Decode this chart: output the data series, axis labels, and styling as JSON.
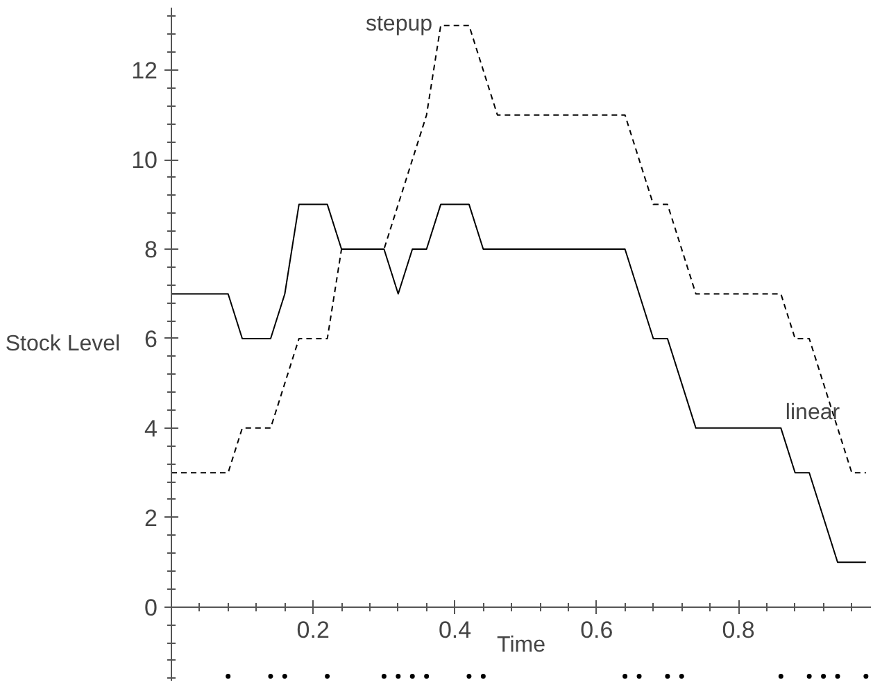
{
  "chart_data": {
    "type": "line",
    "xlabel": "Time",
    "ylabel": "Stock Level",
    "xlim": [
      0,
      0.987
    ],
    "ylim": [
      -1.65,
      13.4
    ],
    "xticks": [
      0.2,
      0.4,
      0.6,
      0.8
    ],
    "yticks": [
      0,
      2,
      4,
      6,
      8,
      10,
      12
    ],
    "grid": false,
    "series": [
      {
        "line_style": "solid",
        "color": "#000000",
        "x": [
          0,
          0.08,
          0.1,
          0.14,
          0.16,
          0.18,
          0.22,
          0.24,
          0.3,
          0.32,
          0.34,
          0.36,
          0.38,
          0.42,
          0.44,
          0.64,
          0.68,
          0.7,
          0.74,
          0.86,
          0.88,
          0.9,
          0.94,
          0.98
        ],
        "values": [
          7,
          7,
          6,
          6,
          7,
          9,
          9,
          8,
          8,
          7,
          8,
          8,
          9,
          9,
          8,
          8,
          6,
          6,
          4,
          4,
          3,
          3,
          1,
          1
        ]
      },
      {
        "line_style": "dashed",
        "color": "#000000",
        "x": [
          0,
          0.08,
          0.1,
          0.14,
          0.18,
          0.22,
          0.24,
          0.3,
          0.36,
          0.38,
          0.42,
          0.46,
          0.64,
          0.68,
          0.7,
          0.74,
          0.86,
          0.88,
          0.9,
          0.96,
          0.98
        ],
        "values": [
          3,
          3,
          4,
          4,
          6,
          6,
          8,
          8,
          11,
          13,
          13,
          11,
          11,
          9,
          9,
          7,
          7,
          6,
          6,
          3,
          3
        ]
      },
      {
        "type": "scatter",
        "marker": "circle",
        "color": "#000000",
        "x": [
          0.08,
          0.14,
          0.16,
          0.22,
          0.3,
          0.32,
          0.34,
          0.36,
          0.42,
          0.44,
          0.64,
          0.66,
          0.7,
          0.72,
          0.86,
          0.9,
          0.92,
          0.94,
          0.98
        ],
        "values": [
          -1.55,
          -1.55,
          -1.55,
          -1.55,
          -1.55,
          -1.55,
          -1.55,
          -1.55,
          -1.55,
          -1.55,
          -1.55,
          -1.55,
          -1.55,
          -1.55,
          -1.55,
          -1.55,
          -1.55,
          -1.55,
          -1.55
        ]
      }
    ],
    "annotations": [
      "stepup",
      "linear"
    ]
  }
}
